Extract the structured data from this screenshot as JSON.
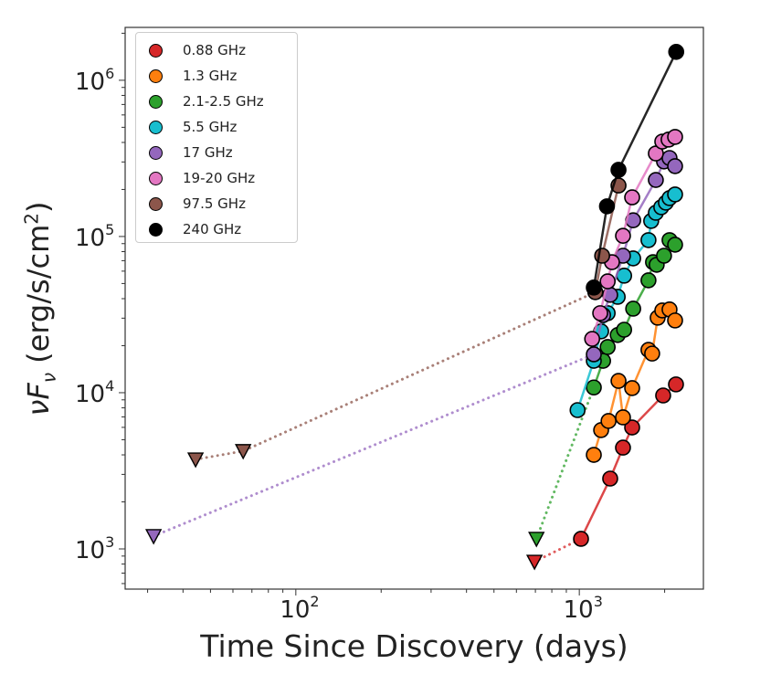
{
  "chart_data": {
    "type": "scatter",
    "title": "",
    "xlabel": "Time Since Discovery (days)",
    "ylabel": {
      "main": "νF",
      "sub": "ν",
      "units": " (erg/s/cm",
      "units_sup": "2",
      "units_end": ")"
    },
    "xscale": "log",
    "yscale": "log",
    "xlim": [
      25,
      2740
    ],
    "ylim": [
      553,
      2180000
    ],
    "grid": false,
    "legend_position": "top-left",
    "x_ticks": [
      {
        "base": "10",
        "exp": "2",
        "value": 100
      },
      {
        "base": "10",
        "exp": "3",
        "value": 1000
      }
    ],
    "y_ticks": [
      {
        "base": "10",
        "exp": "3",
        "value": 1000
      },
      {
        "base": "10",
        "exp": "4",
        "value": 10000
      },
      {
        "base": "10",
        "exp": "5",
        "value": 100000
      },
      {
        "base": "10",
        "exp": "6",
        "value": 1000000
      }
    ],
    "series": [
      {
        "name": "0.88 GHz",
        "color": "#d62728",
        "points": [
          [
            1014,
            1160
          ],
          [
            1285,
            2820
          ],
          [
            1426,
            4450
          ],
          [
            1536,
            5990
          ],
          [
            1976,
            9600
          ],
          [
            2193,
            11300
          ]
        ],
        "upper_limits": [
          [
            695,
            828
          ]
        ]
      },
      {
        "name": "1.3 GHz",
        "color": "#ff7f0e",
        "points": [
          [
            1125,
            4000
          ],
          [
            1194,
            5760
          ],
          [
            1268,
            6590
          ],
          [
            1375,
            11900
          ],
          [
            1426,
            6950
          ],
          [
            1536,
            10700
          ],
          [
            1754,
            18800
          ],
          [
            1807,
            17800
          ],
          [
            1890,
            30200
          ],
          [
            1962,
            33600
          ],
          [
            2081,
            34100
          ],
          [
            2177,
            29000
          ]
        ],
        "upper_limits": []
      },
      {
        "name": "2.1-2.5 GHz",
        "color": "#2ca02c",
        "points": [
          [
            1125,
            10800
          ],
          [
            1213,
            16000
          ],
          [
            1259,
            19600
          ],
          [
            1366,
            23400
          ],
          [
            1439,
            25300
          ],
          [
            1549,
            34500
          ],
          [
            1754,
            52400
          ],
          [
            1820,
            68500
          ],
          [
            1875,
            65900
          ],
          [
            1990,
            75300
          ],
          [
            2081,
            94800
          ],
          [
            2177,
            88600
          ]
        ],
        "upper_limits": [
          [
            706,
            1160
          ]
        ]
      },
      {
        "name": "5.5 GHz",
        "color": "#17becf",
        "points": [
          [
            986,
            7740
          ],
          [
            1125,
            16000
          ],
          [
            1194,
            24700
          ],
          [
            1259,
            32300
          ],
          [
            1366,
            41100
          ],
          [
            1439,
            56100
          ],
          [
            1549,
            72400
          ],
          [
            1754,
            94800
          ],
          [
            1793,
            125700
          ],
          [
            1862,
            141800
          ],
          [
            1946,
            153900
          ],
          [
            2020,
            164600
          ],
          [
            2081,
            176000
          ],
          [
            2177,
            185800
          ]
        ],
        "upper_limits": []
      },
      {
        "name": "17 GHz",
        "color": "#9467bd",
        "points": [
          [
            1125,
            17600
          ],
          [
            1213,
            31400
          ],
          [
            1285,
            42300
          ],
          [
            1426,
            75300
          ],
          [
            1549,
            127000
          ],
          [
            1862,
            230000
          ],
          [
            1990,
            302000
          ],
          [
            2081,
            318000
          ],
          [
            2177,
            282000
          ]
        ],
        "upper_limits": [
          [
            31.5,
            1208
          ]
        ]
      },
      {
        "name": "19-20 GHz",
        "color": "#e377c2",
        "points": [
          [
            1110,
            22100
          ],
          [
            1185,
            32300
          ],
          [
            1259,
            51600
          ],
          [
            1304,
            68500
          ],
          [
            1426,
            101000
          ],
          [
            1536,
            178000
          ],
          [
            1862,
            340000
          ],
          [
            1962,
            405000
          ],
          [
            2065,
            417000
          ],
          [
            2177,
            434000
          ]
        ],
        "upper_limits": []
      },
      {
        "name": "97.5 GHz",
        "color": "#8c564b",
        "points": [
          [
            1139,
            44000
          ],
          [
            1204,
            75300
          ],
          [
            1375,
            212000
          ]
        ],
        "upper_limits": [
          [
            44.3,
            3740
          ],
          [
            65.2,
            4230
          ]
        ]
      },
      {
        "name": "240 GHz",
        "color": "#000000",
        "points": [
          [
            1125,
            47100
          ],
          [
            1252,
            156000
          ],
          [
            1375,
            267000
          ],
          [
            2197,
            1520000
          ]
        ],
        "upper_limits": []
      }
    ]
  }
}
